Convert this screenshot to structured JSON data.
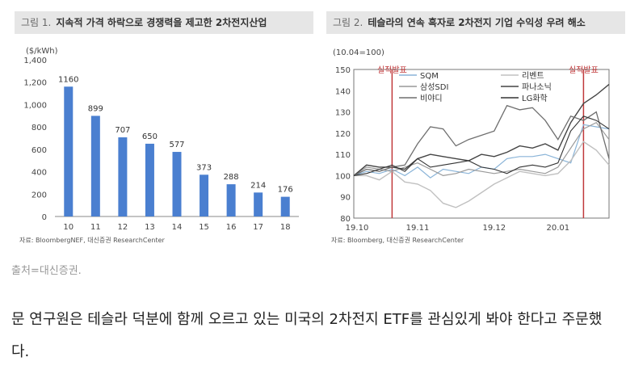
{
  "caption": "출처=대신증권.",
  "body_text": "문 연구원은 테슬라 덕분에 함께 오르고 있는 미국의 2차전지 ETF를 관심있게 봐야 한다고 주문했다.",
  "colors": {
    "bar": "#4a7fd0",
    "annotation": "#c0393b",
    "sqm": "#8ab4d8",
    "rivian_like": "#c0c0c0"
  },
  "chart_data": [
    {
      "type": "bar",
      "figure_label": "그림 1.",
      "title": "지속적 가격 하락으로 경쟁력을 제고한 2차전지산업",
      "unit_label": "($/kWh)",
      "categories": [
        "10",
        "11",
        "12",
        "13",
        "14",
        "15",
        "16",
        "17",
        "18"
      ],
      "values": [
        1160,
        899,
        707,
        650,
        577,
        373,
        288,
        214,
        176
      ],
      "ylim": [
        0,
        1400
      ],
      "yticks": [
        "0",
        "200",
        "400",
        "600",
        "800",
        "1,000",
        "1,200",
        "1,400"
      ],
      "source": "자료: BloombergNEF, 대신증권 ResearchCenter"
    },
    {
      "type": "line",
      "figure_label": "그림 2.",
      "title": "테슬라의 연속 흑자로 2차전지 기업 수익성 우려 해소",
      "unit_label": "(10.04=100)",
      "ylim": [
        80,
        150
      ],
      "yticks": [
        "80",
        "90",
        "100",
        "110",
        "120",
        "130",
        "140",
        "150"
      ],
      "xticks": [
        "19.10",
        "19.11",
        "19.12",
        "20.01"
      ],
      "annotation_label": "실적발표",
      "legend": [
        "SQM",
        "리벤트",
        "삼성SDI",
        "파나소닉",
        "비야디",
        "LG화학"
      ],
      "series": [
        {
          "name": "SQM",
          "values": [
            100,
            102,
            101,
            103,
            100,
            104,
            99,
            103,
            102,
            101,
            104,
            103,
            108,
            109,
            109,
            110,
            108,
            106,
            124,
            123,
            122
          ]
        },
        {
          "name": "리벤트",
          "values": [
            100,
            100,
            98,
            102,
            97,
            96,
            93,
            87,
            85,
            88,
            92,
            96,
            99,
            102,
            101,
            100,
            101,
            107,
            116,
            112,
            105
          ]
        },
        {
          "name": "삼성SDI",
          "values": [
            100,
            104,
            103,
            102,
            104,
            106,
            103,
            100,
            101,
            103,
            102,
            101,
            102,
            103,
            102,
            101,
            104,
            113,
            122,
            125,
            117
          ]
        },
        {
          "name": "파나소닉",
          "values": [
            100,
            105,
            104,
            104,
            103,
            108,
            110,
            109,
            108,
            107,
            110,
            109,
            111,
            114,
            113,
            115,
            112,
            125,
            134,
            138,
            143
          ]
        },
        {
          "name": "비야디",
          "values": [
            100,
            103,
            102,
            104,
            105,
            115,
            123,
            122,
            114,
            117,
            119,
            121,
            133,
            131,
            132,
            126,
            117,
            128,
            126,
            130,
            108
          ]
        },
        {
          "name": "LG화학",
          "values": [
            100,
            101,
            103,
            105,
            102,
            108,
            104,
            105,
            106,
            107,
            104,
            103,
            101,
            104,
            105,
            104,
            106,
            121,
            128,
            126,
            122
          ]
        }
      ],
      "source": "자료: Bloomberg, 대신증권 ResearchCenter"
    }
  ]
}
